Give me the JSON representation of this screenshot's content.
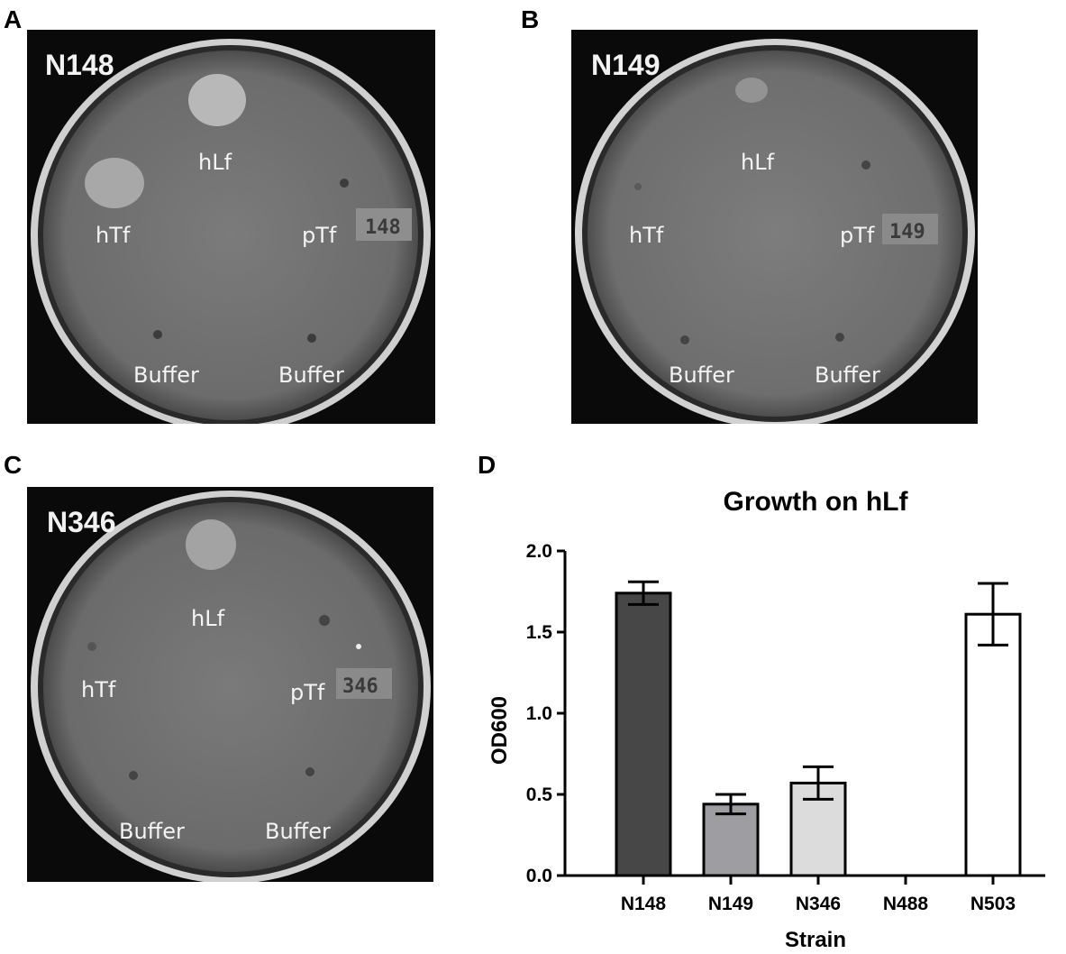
{
  "panels": [
    {
      "letter": "A",
      "strain": "N148",
      "spots": {
        "hlf": "hLf",
        "htf": "hTf",
        "ptf": "pTf",
        "buffer1": "Buffer",
        "buffer2": "Buffer"
      },
      "tag": "148"
    },
    {
      "letter": "B",
      "strain": "N149",
      "spots": {
        "hlf": "hLf",
        "htf": "hTf",
        "ptf": "pTf",
        "buffer1": "Buffer",
        "buffer2": "Buffer"
      },
      "tag": "149"
    },
    {
      "letter": "C",
      "strain": "N346",
      "spots": {
        "hlf": "hLf",
        "htf": "hTf",
        "ptf": "pTf",
        "buffer1": "Buffer",
        "buffer2": "Buffer"
      },
      "tag": "346"
    }
  ],
  "chart_letter": "D",
  "chart_data": {
    "type": "bar",
    "title": "Growth on hLf",
    "xlabel": "Strain",
    "ylabel": "OD600",
    "categories": [
      "N148",
      "N149",
      "N346",
      "N488",
      "N503"
    ],
    "values": [
      1.74,
      0.44,
      0.57,
      0.0,
      1.61
    ],
    "errors": [
      0.07,
      0.06,
      0.1,
      0.0,
      0.19
    ],
    "colors": [
      "#474747",
      "#9e9ea2",
      "#dcdcdc",
      "#ffffff",
      "#ffffff"
    ],
    "ylim": [
      0,
      2.0
    ],
    "yticks": [
      "0.0",
      "0.5",
      "1.0",
      "1.5",
      "2.0"
    ],
    "grid": false
  }
}
